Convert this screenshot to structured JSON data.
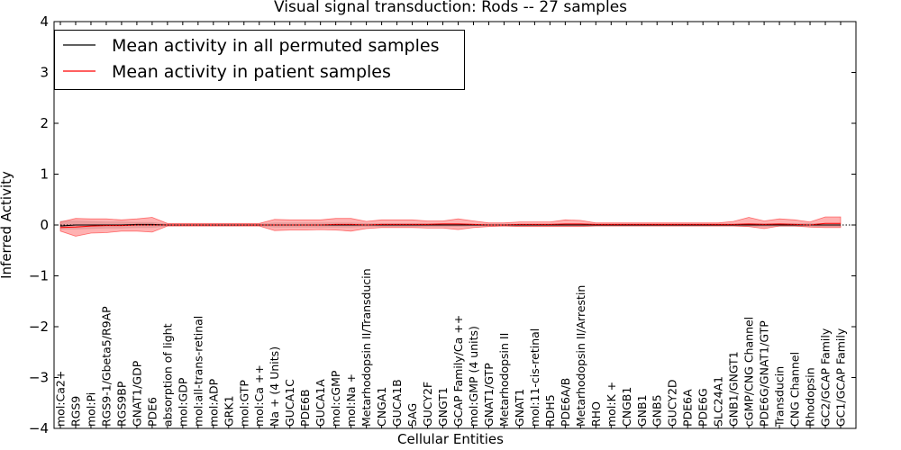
{
  "chart_data": {
    "type": "line",
    "title": "Visual signal transduction: Rods -- 27 samples",
    "xlabel": "Cellular Entities",
    "ylabel": "Inferred Activity",
    "ylim": [
      -4,
      4
    ],
    "yticks": [
      4,
      3,
      2,
      1,
      0,
      -1,
      -2,
      -3,
      -4
    ],
    "ytick_labels": [
      "4",
      "3",
      "2",
      "1",
      "0",
      "−1",
      "−2",
      "−3",
      "−4"
    ],
    "legend_position": "top-left",
    "categories": [
      "mol:Ca2+",
      "RGS9",
      "mol:Pi",
      "RGS9-1/Gbeta5/R9AP",
      "RGS9BP",
      "GNAT1/GDP",
      "PDE6",
      "absorption of light",
      "mol:GDP",
      "mol:all-trans-retinal",
      "mol:ADP",
      "GRK1",
      "mol:GTP",
      "mol:Ca ++",
      "Na + (4 Units)",
      "GUCA1C",
      "PDE6B",
      "GUCA1A",
      "mol:cGMP",
      "mol:Na +",
      "Metarhodopsin II/Transducin",
      "CNGA1",
      "GUCA1B",
      "SAG",
      "GUCY2F",
      "GNGT1",
      "GCAP Family/Ca ++",
      "mol:GMP (4 units)",
      "GNAT1/GTP",
      "Metarhodopsin II",
      "GNAT1",
      "mol:11-cis-retinal",
      "RDH5",
      "PDE6A/B",
      "Metarhodopsin II/Arrestin",
      "RHO",
      "mol:K +",
      "CNGB1",
      "GNB1",
      "GNB5",
      "GUCY2D",
      "PDE6A",
      "PDE6G",
      "SLC24A1",
      "GNB1/GNGT1",
      "cGMP/CNG Channel",
      "PDE6G/GNAT1/GTP",
      "Transducin",
      "CNG Channel",
      "Rhodopsin",
      "GC2/GCAP Family",
      "GC1/GCAP Family"
    ],
    "series": [
      {
        "name": "Mean activity in all permuted samples",
        "color": "#000000",
        "values": [
          -0.02,
          0.0,
          0.0,
          0.0,
          0.0,
          0.01,
          0.01,
          0.0,
          0.0,
          0.0,
          0.0,
          0.0,
          0.0,
          0.0,
          0.0,
          0.0,
          0.0,
          0.0,
          0.0,
          0.0,
          0.0,
          0.0,
          0.0,
          0.0,
          0.0,
          0.0,
          0.0,
          0.0,
          0.0,
          0.0,
          0.0,
          0.0,
          0.0,
          0.0,
          0.0,
          0.0,
          0.0,
          0.0,
          0.0,
          0.0,
          0.0,
          0.0,
          0.0,
          0.0,
          0.0,
          0.0,
          0.0,
          0.0,
          0.0,
          0.0,
          0.0,
          0.0
        ],
        "band_lower": [
          -0.08,
          -0.08,
          -0.07,
          -0.06,
          -0.06,
          -0.05,
          -0.05,
          -0.02,
          -0.02,
          -0.02,
          -0.02,
          -0.02,
          -0.02,
          -0.02,
          -0.04,
          -0.04,
          -0.04,
          -0.04,
          -0.04,
          -0.04,
          -0.03,
          -0.03,
          -0.03,
          -0.03,
          -0.03,
          -0.03,
          -0.03,
          -0.02,
          -0.02,
          -0.02,
          -0.02,
          -0.02,
          -0.02,
          -0.02,
          -0.02,
          -0.02,
          -0.02,
          -0.02,
          -0.02,
          -0.02,
          -0.02,
          -0.02,
          -0.02,
          -0.02,
          -0.02,
          -0.03,
          -0.03,
          -0.03,
          -0.03,
          -0.03,
          -0.03,
          -0.03
        ],
        "band_upper": [
          0.08,
          0.08,
          0.07,
          0.06,
          0.06,
          0.05,
          0.05,
          0.02,
          0.02,
          0.02,
          0.02,
          0.02,
          0.02,
          0.02,
          0.04,
          0.04,
          0.04,
          0.04,
          0.04,
          0.04,
          0.03,
          0.03,
          0.03,
          0.03,
          0.03,
          0.03,
          0.03,
          0.02,
          0.02,
          0.02,
          0.02,
          0.02,
          0.02,
          0.02,
          0.02,
          0.02,
          0.02,
          0.02,
          0.02,
          0.02,
          0.02,
          0.02,
          0.02,
          0.02,
          0.02,
          0.03,
          0.03,
          0.03,
          0.03,
          0.03,
          0.03,
          0.03
        ]
      },
      {
        "name": "Mean activity in patient samples",
        "color": "#ff0000",
        "values": [
          -0.05,
          -0.04,
          -0.02,
          -0.01,
          -0.01,
          0.0,
          0.0,
          0.0,
          0.0,
          0.0,
          0.0,
          0.0,
          0.0,
          0.0,
          0.0,
          0.0,
          0.0,
          0.0,
          0.01,
          0.01,
          0.0,
          0.01,
          0.01,
          0.01,
          0.01,
          0.02,
          0.02,
          0.01,
          0.0,
          0.0,
          0.01,
          0.01,
          0.01,
          0.02,
          0.02,
          0.01,
          0.01,
          0.01,
          0.01,
          0.01,
          0.01,
          0.01,
          0.01,
          0.01,
          0.01,
          0.02,
          0.01,
          0.02,
          0.01,
          0.0,
          0.03,
          0.03
        ],
        "band_lower": [
          -0.12,
          -0.22,
          -0.16,
          -0.15,
          -0.12,
          -0.12,
          -0.14,
          -0.02,
          -0.02,
          -0.02,
          -0.02,
          -0.02,
          -0.02,
          -0.02,
          -0.11,
          -0.1,
          -0.1,
          -0.09,
          -0.1,
          -0.12,
          -0.07,
          -0.05,
          -0.05,
          -0.05,
          -0.06,
          -0.06,
          -0.09,
          -0.05,
          -0.03,
          -0.02,
          -0.03,
          -0.03,
          -0.03,
          -0.03,
          -0.03,
          -0.02,
          -0.02,
          -0.02,
          -0.02,
          -0.02,
          -0.02,
          -0.02,
          -0.02,
          -0.02,
          -0.02,
          -0.03,
          -0.07,
          -0.02,
          -0.02,
          -0.04,
          -0.05,
          -0.05
        ],
        "band_upper": [
          0.06,
          0.13,
          0.12,
          0.12,
          0.1,
          0.12,
          0.15,
          0.03,
          0.03,
          0.03,
          0.03,
          0.03,
          0.03,
          0.03,
          0.11,
          0.1,
          0.1,
          0.1,
          0.13,
          0.13,
          0.07,
          0.1,
          0.1,
          0.1,
          0.08,
          0.08,
          0.12,
          0.08,
          0.04,
          0.04,
          0.06,
          0.06,
          0.06,
          0.1,
          0.09,
          0.04,
          0.04,
          0.04,
          0.04,
          0.04,
          0.04,
          0.04,
          0.04,
          0.04,
          0.07,
          0.15,
          0.08,
          0.12,
          0.1,
          0.06,
          0.16,
          0.16
        ]
      }
    ],
    "reference_line": {
      "y": 0,
      "style": "dotted"
    }
  }
}
